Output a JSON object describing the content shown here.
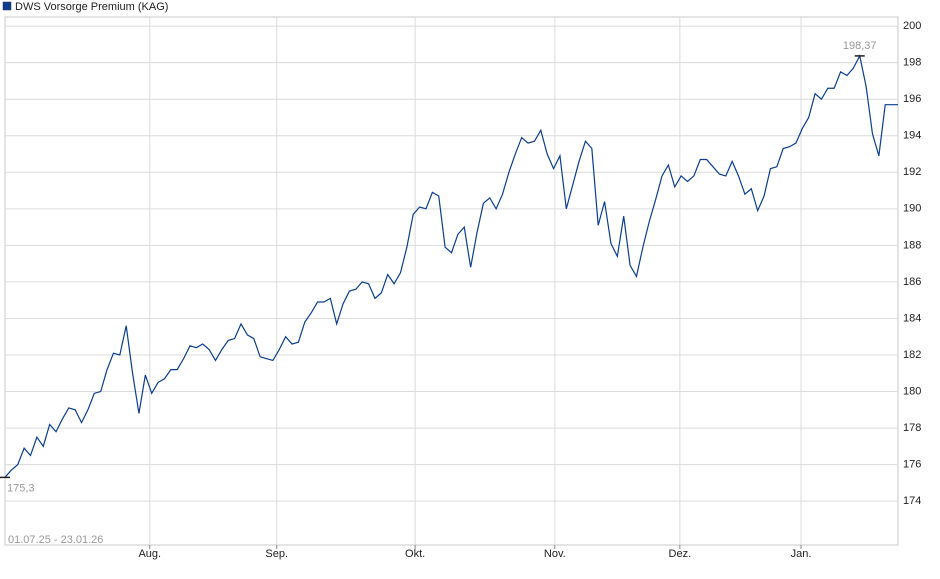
{
  "chart_data": {
    "type": "line",
    "range_label": "01.07.25 - 23.01.26",
    "series": [
      {
        "name": "DWS Vorsorge Premium (KAG)",
        "color": "#0b3d91",
        "values": [
          175.3,
          175.7,
          176,
          176.9,
          176.5,
          177.5,
          177,
          178.2,
          177.8,
          178.5,
          179.1,
          179,
          178.3,
          179,
          179.9,
          180,
          181.2,
          182.1,
          182,
          183.6,
          181,
          178.8,
          180.9,
          179.9,
          180.5,
          180.7,
          181.2,
          181.2,
          181.8,
          182.5,
          182.4,
          182.6,
          182.3,
          181.7,
          182.3,
          182.8,
          182.9,
          183.7,
          183.1,
          182.9,
          181.9,
          181.8,
          181.7,
          182.3,
          183,
          182.6,
          182.7,
          183.8,
          184.3,
          184.9,
          184.9,
          185.1,
          183.7,
          184.8,
          185.5,
          185.6,
          186,
          185.9,
          185.1,
          185.4,
          186.4,
          185.9,
          186.5,
          187.9,
          189.7,
          190.1,
          190,
          190.9,
          190.7,
          187.9,
          187.6,
          188.6,
          189,
          186.8,
          188.7,
          190.3,
          190.6,
          190,
          190.8,
          192,
          193,
          193.9,
          193.6,
          193.7,
          194.3,
          193,
          192.2,
          192.9,
          190,
          191.3,
          192.6,
          193.7,
          193.3,
          189.1,
          190.4,
          188.1,
          187.4,
          189.6,
          186.9,
          186.3,
          187.9,
          189.3,
          190.5,
          191.8,
          192.4,
          191.2,
          191.8,
          191.5,
          191.8,
          192.7,
          192.7,
          192.3,
          191.9,
          191.8,
          192.6,
          191.8,
          190.8,
          191.1,
          189.9,
          190.7,
          192.2,
          192.3,
          193.3,
          193.4,
          193.6,
          194.4,
          195,
          196.3,
          196,
          196.6,
          196.6,
          197.5,
          197.3,
          197.7,
          198.37,
          196.7,
          194.1,
          192.9,
          195.7,
          195.7,
          195.7
        ],
        "value_labels": [
          "175,3",
          null,
          null,
          null,
          null,
          null,
          null,
          null,
          null,
          null,
          null,
          null,
          null,
          null,
          null,
          null,
          null,
          null,
          null,
          null,
          null,
          null,
          null,
          null,
          null,
          null,
          null,
          null,
          null,
          null,
          null,
          null,
          null,
          null,
          null,
          null,
          null,
          null,
          null,
          null,
          null,
          null,
          null,
          null,
          null,
          null,
          null,
          null,
          null,
          null,
          null,
          null,
          null,
          null,
          null,
          null,
          null,
          null,
          null,
          null,
          null,
          null,
          null,
          null,
          null,
          null,
          null,
          null,
          null,
          null,
          null,
          null,
          null,
          null,
          null,
          null,
          null,
          null,
          null,
          null,
          null,
          null,
          null,
          null,
          null,
          null,
          null,
          null,
          null,
          null,
          null,
          null,
          null,
          null,
          null,
          null,
          null,
          null,
          null,
          null,
          null,
          null,
          null,
          null,
          null,
          null,
          null,
          null,
          null,
          null,
          null,
          null,
          null,
          null,
          null,
          null,
          null,
          null,
          null,
          null,
          null,
          null,
          null,
          null,
          null,
          null,
          null,
          null,
          null,
          null,
          null,
          null,
          null,
          null,
          "198,37",
          null,
          null,
          null,
          null,
          null,
          null
        ]
      }
    ],
    "xlim": [
      0,
      140
    ],
    "xticks": [
      {
        "value": 22.7,
        "label": "Aug."
      },
      {
        "value": 42.6,
        "label": "Sep."
      },
      {
        "value": 64.3,
        "label": "Okt."
      },
      {
        "value": 86.2,
        "label": "Nov."
      },
      {
        "value": 105.8,
        "label": "Dez."
      },
      {
        "value": 124.8,
        "label": "Jan."
      }
    ],
    "ylim": [
      171.6,
      200.5
    ],
    "yticks": [
      174,
      176,
      178,
      180,
      182,
      184,
      186,
      188,
      190,
      192,
      194,
      196,
      198,
      200
    ],
    "grid": true,
    "legend": "top-left"
  }
}
